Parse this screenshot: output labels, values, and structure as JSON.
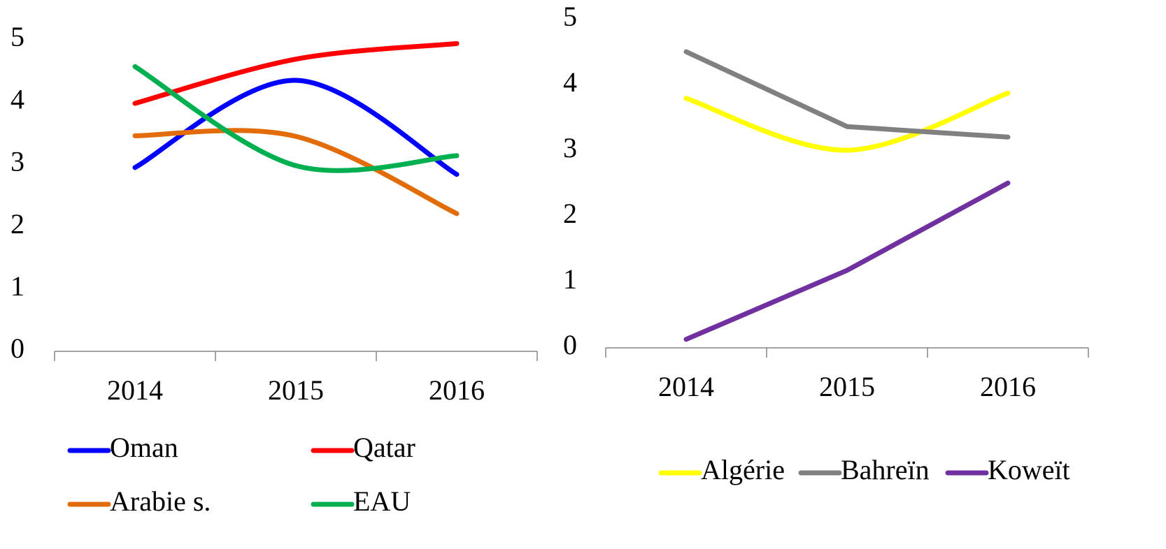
{
  "chart_data": [
    {
      "type": "line",
      "smooth": true,
      "categories": [
        "2014",
        "2015",
        "2016"
      ],
      "ylim": [
        0,
        5
      ],
      "yticks": [
        0,
        1,
        2,
        3,
        4,
        5
      ],
      "series": [
        {
          "name": "Oman",
          "color": "#0000ff",
          "values": [
            2.95,
            4.35,
            2.84
          ]
        },
        {
          "name": "Qatar",
          "color": "#ff0000",
          "values": [
            3.98,
            4.69,
            4.94
          ]
        },
        {
          "name": "Arabie s.",
          "color": "#e36c0a",
          "values": [
            3.46,
            3.45,
            2.21
          ]
        },
        {
          "name": "EAU",
          "color": "#00b050",
          "values": [
            4.57,
            2.98,
            3.14
          ]
        }
      ]
    },
    {
      "type": "line",
      "smooth": false,
      "categories": [
        "2014",
        "2015",
        "2016"
      ],
      "ylim": [
        0,
        5
      ],
      "yticks": [
        0,
        1,
        2,
        3,
        4,
        5
      ],
      "series": [
        {
          "name": "Algérie",
          "color": "#ffff00",
          "smooth": true,
          "values": [
            3.8,
            3.01,
            3.88
          ]
        },
        {
          "name": "Bahreïn",
          "color": "#808080",
          "values": [
            4.51,
            3.37,
            3.21
          ]
        },
        {
          "name": "Koweït",
          "color": "#7030a0",
          "values": [
            0.13,
            1.18,
            2.51
          ]
        }
      ]
    }
  ]
}
